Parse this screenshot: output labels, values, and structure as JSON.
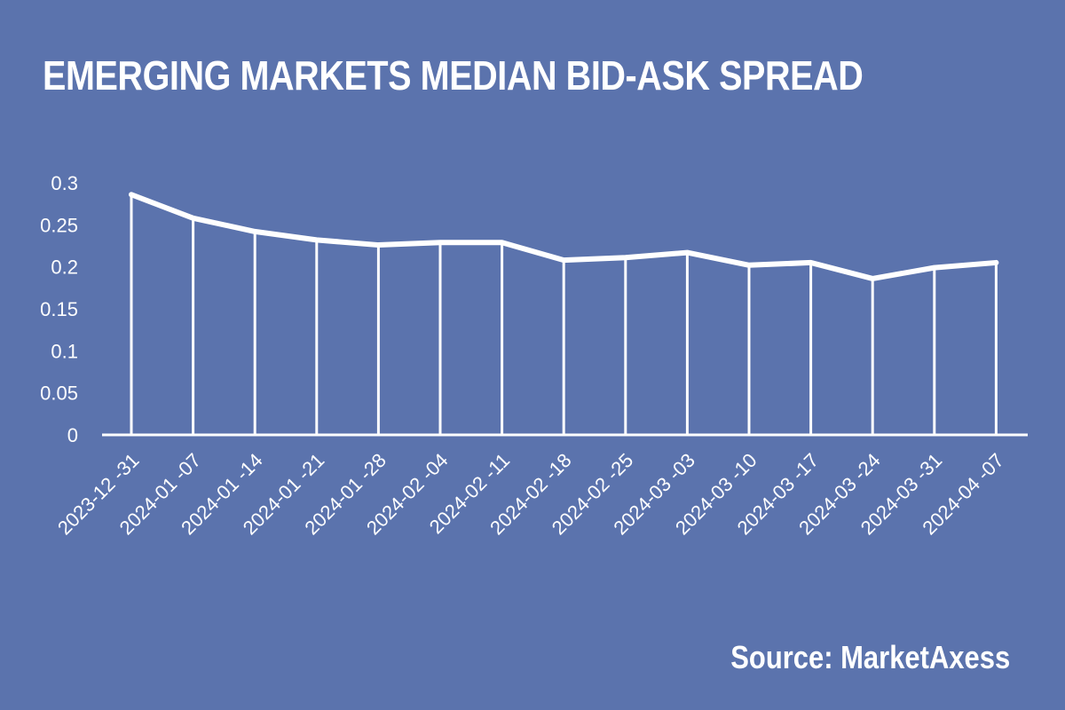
{
  "title": "EMERGING MARKETS MEDIAN BID-ASK SPREAD",
  "source": "Source: MarketAxess",
  "colors": {
    "background": "#5b73ad",
    "foreground": "#ffffff"
  },
  "chart_data": {
    "type": "area",
    "categories": [
      "2023-12-31",
      "2024-01-07",
      "2024-01-14",
      "2024-01-21",
      "2024-01-28",
      "2024-02-04",
      "2024-02-11",
      "2024-02-18",
      "2024-02-25",
      "2024-03-03",
      "2024-03-10",
      "2024-03-17",
      "2024-03-24",
      "2024-03-31",
      "2024-04-07"
    ],
    "tick_labels": [
      "2023-12 -31",
      "2024-01 -07",
      "2024-01 -14",
      "2024-01 -21",
      "2024-01 -28",
      "2024-02 -04",
      "2024-02 -11",
      "2024-02 -18",
      "2024-02 -25",
      "2024-03 -03",
      "2024-03 -10",
      "2024-03 -17",
      "2024-03 -24",
      "2024-03 -31",
      "2024-04 -07"
    ],
    "values": [
      0.286,
      0.258,
      0.242,
      0.232,
      0.226,
      0.229,
      0.229,
      0.208,
      0.211,
      0.217,
      0.202,
      0.205,
      0.186,
      0.199,
      0.205
    ],
    "ylim": [
      0,
      0.3
    ],
    "yticks": [
      "0",
      "0.05",
      "0.1",
      "0.15",
      "0.2",
      "0.25",
      "0.3"
    ],
    "title": "EMERGING MARKETS MEDIAN BID-ASK SPREAD",
    "xlabel": "",
    "ylabel": "",
    "grid": false,
    "legend": "none"
  }
}
